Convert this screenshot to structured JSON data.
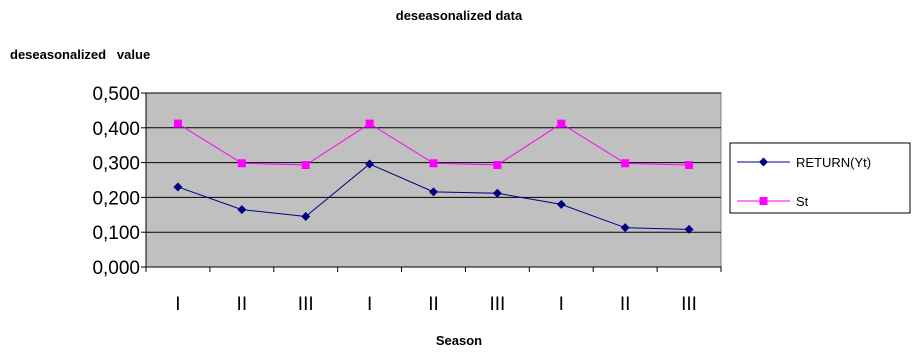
{
  "chart_data": {
    "type": "line",
    "title": "deseasonalized data",
    "ylabel": "deseasonalized   value",
    "xlabel": "Season",
    "categories": [
      "I",
      "II",
      "III",
      "I",
      "II",
      "III",
      "I",
      "II",
      "III"
    ],
    "ylim": [
      0,
      0.5
    ],
    "yticks": [
      "0,000",
      "0,100",
      "0,200",
      "0,300",
      "0,400",
      "0,500"
    ],
    "ytick_values": [
      0,
      0.1,
      0.2,
      0.3,
      0.4,
      0.5
    ],
    "grid": true,
    "legend_position": "right",
    "plot_background": "#c0c0c0",
    "series": [
      {
        "name": "RETURN(Yt)",
        "color": "#000080",
        "marker": "diamond",
        "values": [
          0.23,
          0.165,
          0.145,
          0.296,
          0.216,
          0.212,
          0.18,
          0.113,
          0.108
        ]
      },
      {
        "name": "St",
        "color": "#ff00ff",
        "marker": "square",
        "values": [
          0.412,
          0.298,
          0.293,
          0.412,
          0.298,
          0.293,
          0.412,
          0.298,
          0.293
        ]
      }
    ]
  }
}
